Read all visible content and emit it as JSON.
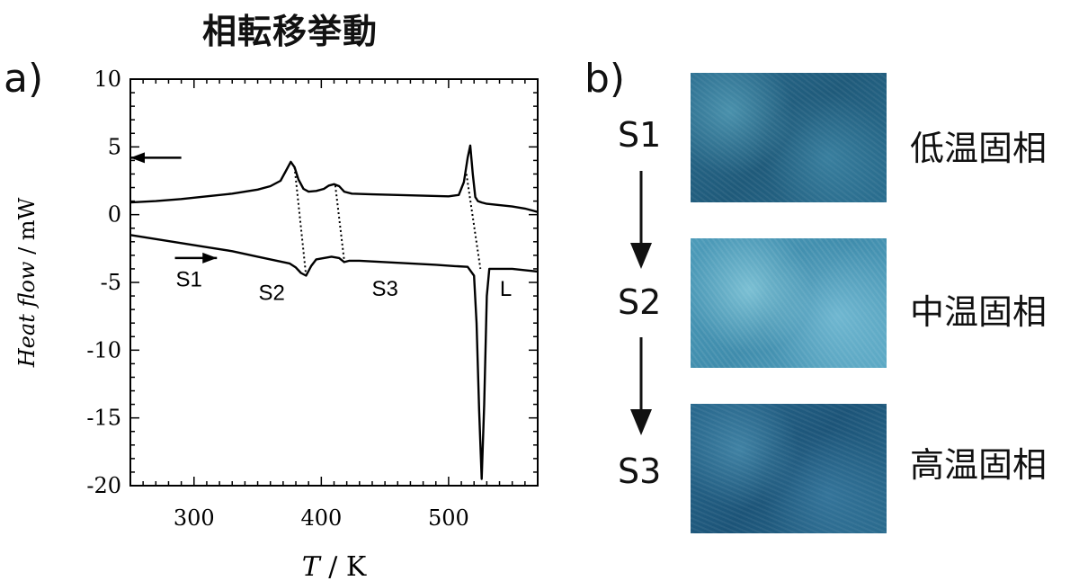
{
  "title": "相転移挙動",
  "panel_a_label": "a)",
  "panel_b_label": "b)",
  "chart_data": {
    "type": "line",
    "xlabel_italic": "T",
    "xlabel_rest": " /  K",
    "ylabel_italic": "Heat flow",
    "ylabel_rest": " / mW",
    "xlim": [
      250,
      570
    ],
    "ylim": [
      -20,
      10
    ],
    "xticks": [
      300,
      400,
      500
    ],
    "yticks": [
      10,
      5,
      0,
      -5,
      -10,
      -15,
      -20
    ],
    "xtick_labels": [
      "300",
      "400",
      "500"
    ],
    "ytick_labels": [
      "10",
      "5",
      "0",
      "-5",
      "-10",
      "-15",
      "-20"
    ],
    "series": [
      {
        "x": [
          250,
          270,
          290,
          310,
          330,
          350,
          360,
          368,
          372,
          376,
          379,
          382,
          386,
          390,
          396,
          402,
          406,
          410,
          414,
          418,
          424,
          440,
          460,
          480,
          500,
          508,
          512,
          515,
          517,
          519,
          521,
          523,
          526,
          530,
          540,
          550,
          560,
          566,
          570
        ],
        "y": [
          0.9,
          1.0,
          1.15,
          1.35,
          1.55,
          1.85,
          2.1,
          2.5,
          3.2,
          3.9,
          3.5,
          2.6,
          1.9,
          1.7,
          1.75,
          1.9,
          2.15,
          2.25,
          2.1,
          1.7,
          1.55,
          1.5,
          1.45,
          1.4,
          1.35,
          1.45,
          2.4,
          4.2,
          5.1,
          3.0,
          1.3,
          1.0,
          0.9,
          0.8,
          0.7,
          0.6,
          0.45,
          0.3,
          0.2
        ]
      },
      {
        "x": [
          250,
          270,
          290,
          310,
          330,
          350,
          365,
          375,
          380,
          384,
          388,
          392,
          396,
          402,
          408,
          414,
          418,
          422,
          430,
          450,
          470,
          490,
          505,
          515,
          520,
          522,
          524,
          526,
          528,
          530,
          532,
          540,
          550,
          560,
          570
        ],
        "y": [
          -1.5,
          -1.8,
          -2.1,
          -2.4,
          -2.7,
          -3.1,
          -3.4,
          -3.6,
          -3.9,
          -4.3,
          -4.5,
          -3.8,
          -3.3,
          -3.2,
          -3.1,
          -3.2,
          -3.5,
          -3.4,
          -3.4,
          -3.5,
          -3.6,
          -3.7,
          -3.8,
          -3.85,
          -4.5,
          -8.0,
          -14.5,
          -19.5,
          -14.0,
          -6.0,
          -4.0,
          -4.0,
          -4.0,
          -4.1,
          -4.2
        ]
      }
    ],
    "connectors": [
      {
        "x1": 379,
        "y1": 3.5,
        "x2": 388,
        "y2": -4.5
      },
      {
        "x1": 411,
        "y1": 2.15,
        "x2": 418,
        "y2": -3.4
      },
      {
        "x1": 514,
        "y1": 3.0,
        "x2": 525,
        "y2": -4.0
      }
    ],
    "annotations": [
      {
        "text": "S1",
        "x": 296,
        "y": -5.3
      },
      {
        "text": "S2",
        "x": 361,
        "y": -6.3
      },
      {
        "text": "S3",
        "x": 450,
        "y": -6.0
      },
      {
        "text": "L",
        "x": 545,
        "y": -6.0
      }
    ],
    "arrows": [
      {
        "direction": "left",
        "x1": 290,
        "x2": 250,
        "y": 4.2
      },
      {
        "direction": "right",
        "x1": 285,
        "x2": 318,
        "y": -3.2
      }
    ]
  },
  "stages": [
    "S1",
    "S2",
    "S3"
  ],
  "phases": [
    "低温固相",
    "中温固相",
    "高温固相"
  ]
}
